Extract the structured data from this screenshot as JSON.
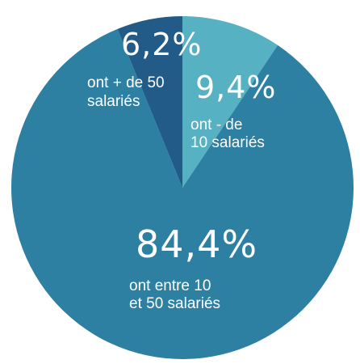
{
  "chart_data": {
    "type": "pie",
    "slices": [
      {
        "value": 9.4,
        "percent_label": "9,4%",
        "line1": "ont - de",
        "line2": "10 salariés",
        "color": "#56b1c2"
      },
      {
        "value": 84.4,
        "percent_label": "84,4%",
        "line1": "ont entre 10",
        "line2": "et 50 salariés",
        "color": "#2e80a3"
      },
      {
        "value": 6.2,
        "percent_label": "6,2%",
        "line1": "ont + de 50",
        "line2": "salariés",
        "color": "#225b88"
      }
    ]
  }
}
